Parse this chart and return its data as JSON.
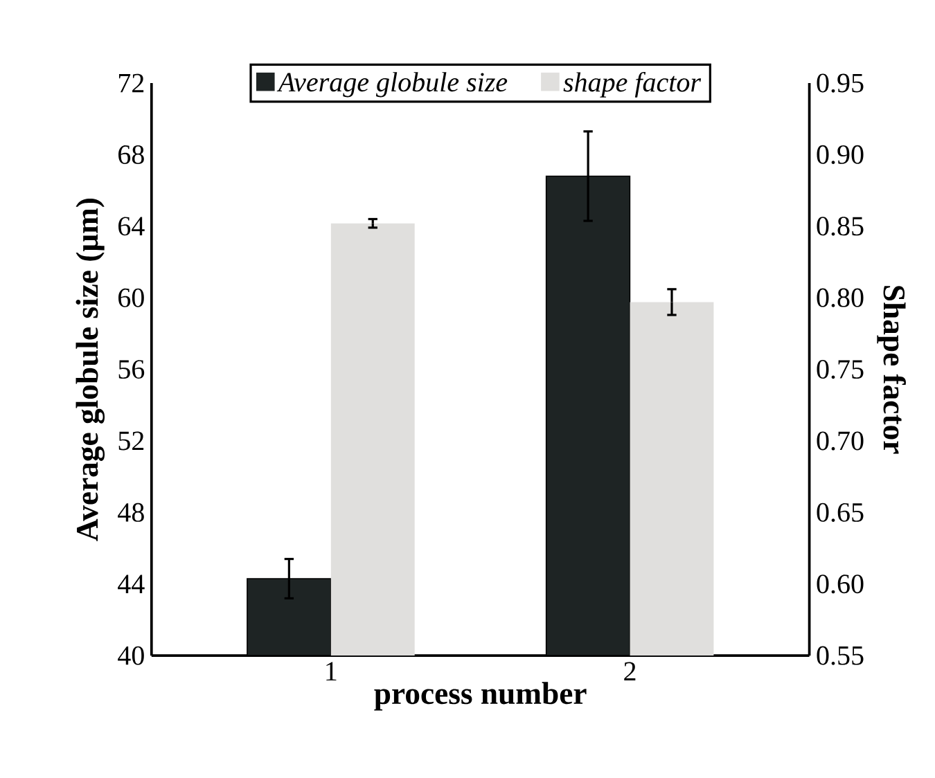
{
  "chart_data": {
    "type": "bar",
    "categories": [
      "1",
      "2"
    ],
    "xlabel": "process number",
    "ylabel": "Average globule size (μm)",
    "y2label": "Shape factor",
    "ylim": [
      40,
      72
    ],
    "yticks": [
      40,
      44,
      48,
      52,
      56,
      60,
      64,
      68,
      72
    ],
    "y2lim": [
      0.55,
      0.95
    ],
    "y2ticks": [
      0.55,
      {
        "value": 0.6,
        "label": "0.60"
      },
      0.65,
      {
        "value": 0.7,
        "label": "0.70"
      },
      0.75,
      {
        "value": 0.8,
        "label": "0.80"
      },
      0.85,
      {
        "value": 0.9,
        "label": "0.90"
      },
      0.95
    ],
    "legend": "top",
    "grid": false,
    "series": [
      {
        "name": "Average globule size",
        "color": "#1e2424",
        "values": [
          44.3,
          66.8
        ],
        "errors": [
          1.1,
          2.5
        ]
      },
      {
        "name": "shape factor",
        "color": "#e0dfdd",
        "axis": "y2",
        "values": [
          0.852,
          0.797
        ],
        "errors": [
          0.003,
          0.009
        ]
      }
    ]
  }
}
